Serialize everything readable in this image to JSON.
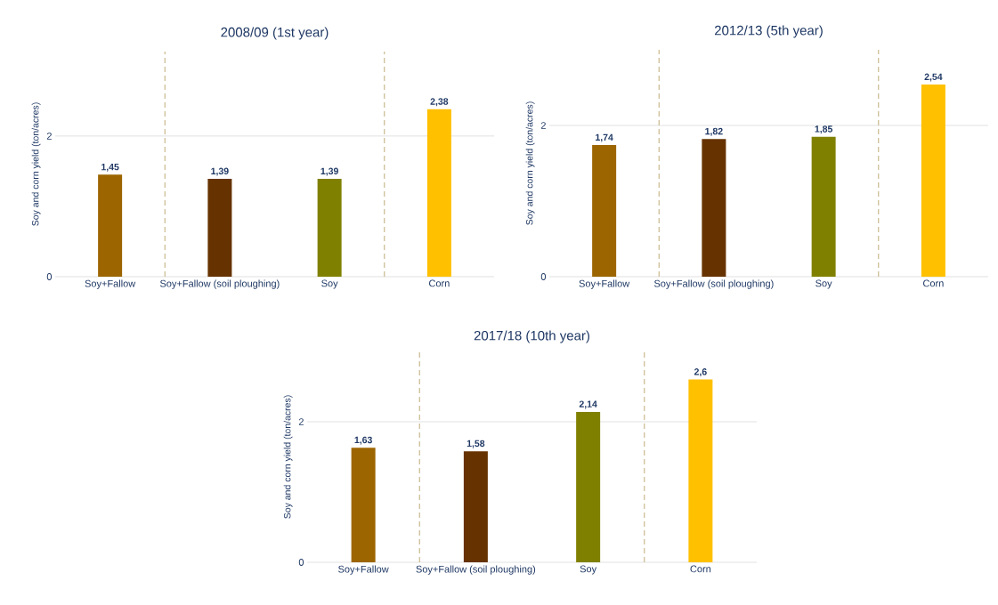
{
  "chart_data": [
    {
      "type": "bar",
      "title": "2008/09 (1st year)",
      "ylabel": "Soy and corn yield (ton/acres)",
      "categories": [
        "Soy+Fallow",
        "Soy+Fallow (soil ploughing)",
        "Soy",
        "Corn"
      ],
      "values": [
        1.45,
        1.39,
        1.39,
        2.38
      ],
      "value_labels": [
        "1,45",
        "1,39",
        "1,39",
        "2,38"
      ],
      "colors": [
        "#9c6500",
        "#663300",
        "#808000",
        "#ffc000"
      ],
      "ylim": [
        0,
        3.2
      ],
      "yticks": [
        0,
        2
      ],
      "ref_lines": [
        {
          "axis": "y",
          "value": 2,
          "color": "#d9d9d9"
        }
      ]
    },
    {
      "type": "bar",
      "title": "2012/13 (5th year)",
      "ylabel": "Soy and corn yield (ton/acres)",
      "categories": [
        "Soy+Fallow",
        "Soy+Fallow (soil ploughing)",
        "Soy",
        "Corn"
      ],
      "values": [
        1.74,
        1.82,
        1.85,
        2.54
      ],
      "value_labels": [
        "1,74",
        "1,82",
        "1,85",
        "2,54"
      ],
      "colors": [
        "#9c6500",
        "#663300",
        "#808000",
        "#ffc000"
      ],
      "ylim": [
        0,
        3
      ],
      "yticks": [
        0,
        2
      ],
      "ref_lines": [
        {
          "axis": "y",
          "value": 2,
          "color": "#d9d9d9"
        }
      ]
    },
    {
      "type": "bar",
      "title": "2017/18 (10th year)",
      "ylabel": "Soy and corn yield (ton/acres)",
      "categories": [
        "Soy+Fallow",
        "Soy+Fallow (soil ploughing)",
        "Soy",
        "Corn"
      ],
      "values": [
        1.63,
        1.58,
        2.14,
        2.6
      ],
      "value_labels": [
        "1,63",
        "1,58",
        "2,14",
        "2,6"
      ],
      "colors": [
        "#9c6500",
        "#663300",
        "#808000",
        "#ffc000"
      ],
      "ylim": [
        0,
        3
      ],
      "yticks": [
        0,
        2
      ],
      "ref_lines": [
        {
          "axis": "y",
          "value": 2,
          "color": "#d9d9d9"
        }
      ]
    }
  ]
}
